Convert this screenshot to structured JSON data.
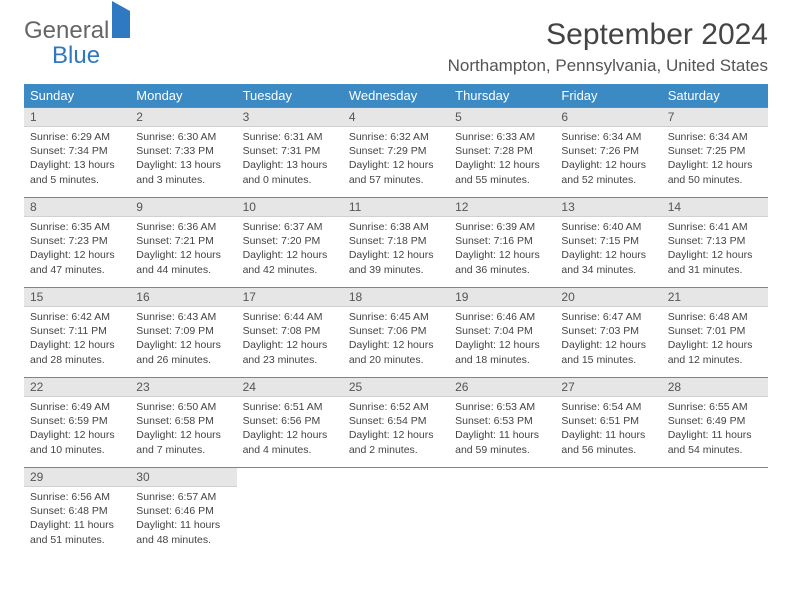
{
  "brand": {
    "word1": "General",
    "word2": "Blue"
  },
  "title": "September 2024",
  "location": "Northampton, Pennsylvania, United States",
  "colors": {
    "header_bg": "#3b8ac4",
    "header_text": "#ffffff",
    "daynum_bg": "#e6e6e6",
    "row_border": "#6b8aa5",
    "brand_accent": "#2f78c2"
  },
  "dayNames": [
    "Sunday",
    "Monday",
    "Tuesday",
    "Wednesday",
    "Thursday",
    "Friday",
    "Saturday"
  ],
  "table": {
    "type": "calendar-grid",
    "columns": 7,
    "rows": 5
  },
  "days": [
    {
      "n": "1",
      "sr": "6:29 AM",
      "ss": "7:34 PM",
      "dl": "13 hours and 5 minutes."
    },
    {
      "n": "2",
      "sr": "6:30 AM",
      "ss": "7:33 PM",
      "dl": "13 hours and 3 minutes."
    },
    {
      "n": "3",
      "sr": "6:31 AM",
      "ss": "7:31 PM",
      "dl": "13 hours and 0 minutes."
    },
    {
      "n": "4",
      "sr": "6:32 AM",
      "ss": "7:29 PM",
      "dl": "12 hours and 57 minutes."
    },
    {
      "n": "5",
      "sr": "6:33 AM",
      "ss": "7:28 PM",
      "dl": "12 hours and 55 minutes."
    },
    {
      "n": "6",
      "sr": "6:34 AM",
      "ss": "7:26 PM",
      "dl": "12 hours and 52 minutes."
    },
    {
      "n": "7",
      "sr": "6:34 AM",
      "ss": "7:25 PM",
      "dl": "12 hours and 50 minutes."
    },
    {
      "n": "8",
      "sr": "6:35 AM",
      "ss": "7:23 PM",
      "dl": "12 hours and 47 minutes."
    },
    {
      "n": "9",
      "sr": "6:36 AM",
      "ss": "7:21 PM",
      "dl": "12 hours and 44 minutes."
    },
    {
      "n": "10",
      "sr": "6:37 AM",
      "ss": "7:20 PM",
      "dl": "12 hours and 42 minutes."
    },
    {
      "n": "11",
      "sr": "6:38 AM",
      "ss": "7:18 PM",
      "dl": "12 hours and 39 minutes."
    },
    {
      "n": "12",
      "sr": "6:39 AM",
      "ss": "7:16 PM",
      "dl": "12 hours and 36 minutes."
    },
    {
      "n": "13",
      "sr": "6:40 AM",
      "ss": "7:15 PM",
      "dl": "12 hours and 34 minutes."
    },
    {
      "n": "14",
      "sr": "6:41 AM",
      "ss": "7:13 PM",
      "dl": "12 hours and 31 minutes."
    },
    {
      "n": "15",
      "sr": "6:42 AM",
      "ss": "7:11 PM",
      "dl": "12 hours and 28 minutes."
    },
    {
      "n": "16",
      "sr": "6:43 AM",
      "ss": "7:09 PM",
      "dl": "12 hours and 26 minutes."
    },
    {
      "n": "17",
      "sr": "6:44 AM",
      "ss": "7:08 PM",
      "dl": "12 hours and 23 minutes."
    },
    {
      "n": "18",
      "sr": "6:45 AM",
      "ss": "7:06 PM",
      "dl": "12 hours and 20 minutes."
    },
    {
      "n": "19",
      "sr": "6:46 AM",
      "ss": "7:04 PM",
      "dl": "12 hours and 18 minutes."
    },
    {
      "n": "20",
      "sr": "6:47 AM",
      "ss": "7:03 PM",
      "dl": "12 hours and 15 minutes."
    },
    {
      "n": "21",
      "sr": "6:48 AM",
      "ss": "7:01 PM",
      "dl": "12 hours and 12 minutes."
    },
    {
      "n": "22",
      "sr": "6:49 AM",
      "ss": "6:59 PM",
      "dl": "12 hours and 10 minutes."
    },
    {
      "n": "23",
      "sr": "6:50 AM",
      "ss": "6:58 PM",
      "dl": "12 hours and 7 minutes."
    },
    {
      "n": "24",
      "sr": "6:51 AM",
      "ss": "6:56 PM",
      "dl": "12 hours and 4 minutes."
    },
    {
      "n": "25",
      "sr": "6:52 AM",
      "ss": "6:54 PM",
      "dl": "12 hours and 2 minutes."
    },
    {
      "n": "26",
      "sr": "6:53 AM",
      "ss": "6:53 PM",
      "dl": "11 hours and 59 minutes."
    },
    {
      "n": "27",
      "sr": "6:54 AM",
      "ss": "6:51 PM",
      "dl": "11 hours and 56 minutes."
    },
    {
      "n": "28",
      "sr": "6:55 AM",
      "ss": "6:49 PM",
      "dl": "11 hours and 54 minutes."
    },
    {
      "n": "29",
      "sr": "6:56 AM",
      "ss": "6:48 PM",
      "dl": "11 hours and 51 minutes."
    },
    {
      "n": "30",
      "sr": "6:57 AM",
      "ss": "6:46 PM",
      "dl": "11 hours and 48 minutes."
    }
  ],
  "labels": {
    "sunrise": "Sunrise:",
    "sunset": "Sunset:",
    "daylight": "Daylight:"
  }
}
